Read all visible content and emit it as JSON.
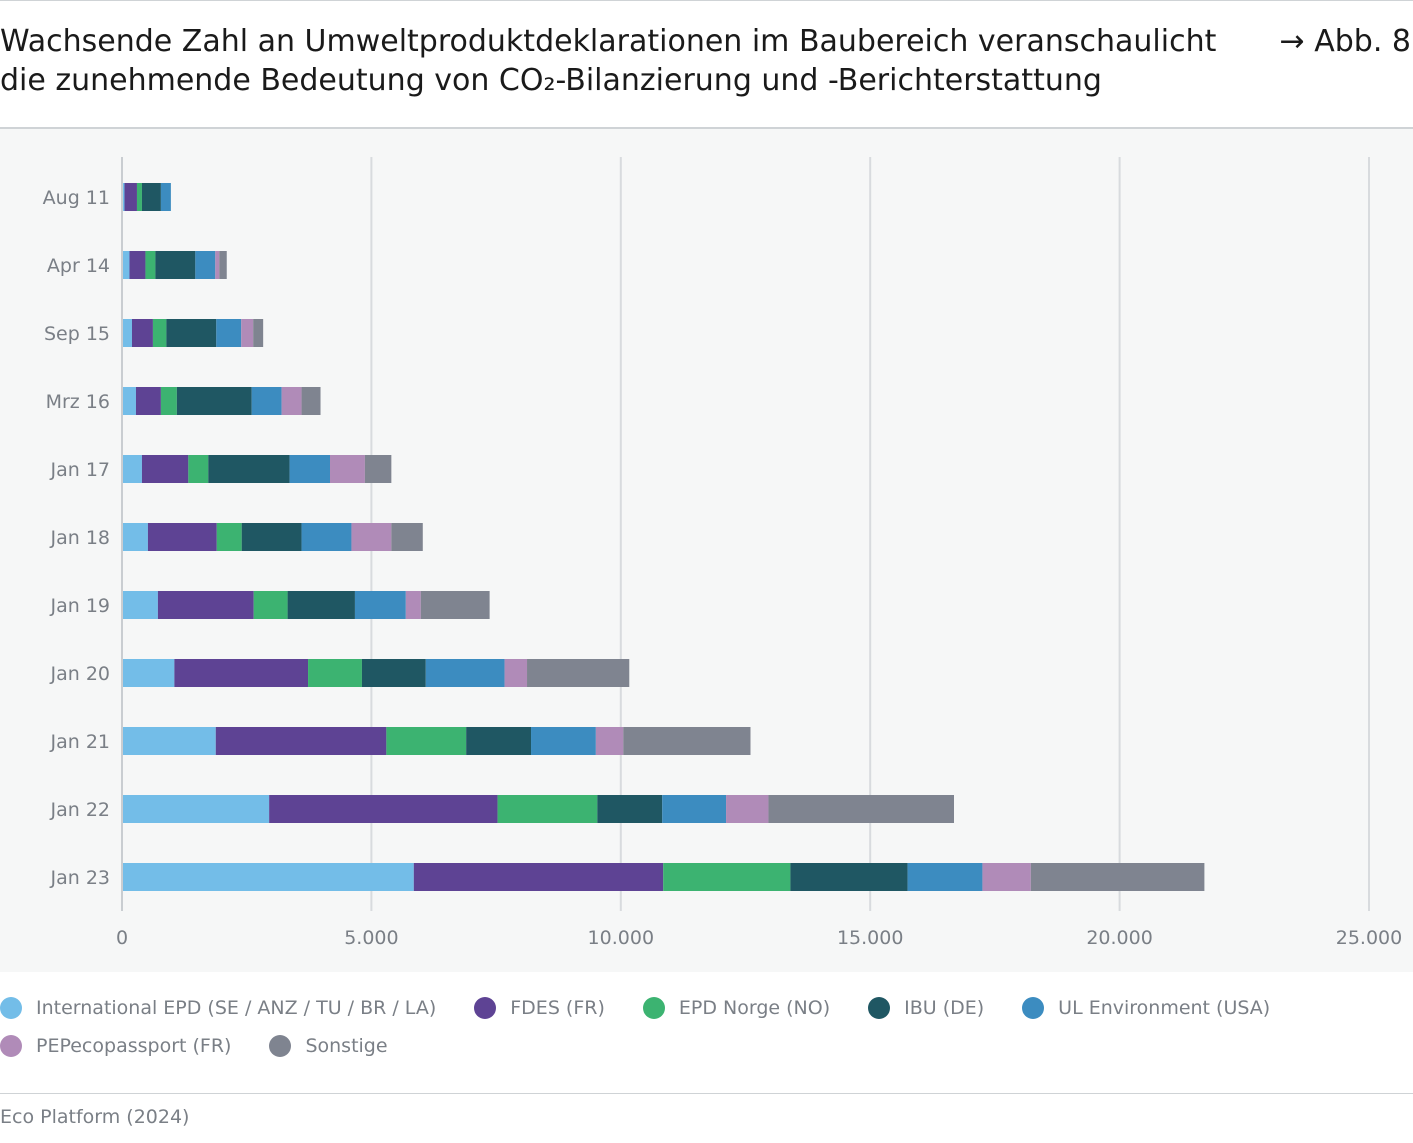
{
  "header": {
    "title_line1": "Wachsende Zahl an Umweltproduktdeklarationen im Baubereich veranschaulicht",
    "title_line2": "die zunehmende Bedeutung von CO₂-Bilanzierung und -Berichterstattung",
    "figure_ref": "→ Abb. 8"
  },
  "footer": {
    "source": "Eco Platform (2024)"
  },
  "chart_data": {
    "type": "bar",
    "orientation": "horizontal",
    "stacked": true,
    "categories": [
      "Aug 11",
      "Apr 14",
      "Sep 15",
      "Mrz 16",
      "Jan 17",
      "Jan 18",
      "Jan 19",
      "Jan 20",
      "Jan 21",
      "Jan 22",
      "Jan 23"
    ],
    "xlim": [
      0,
      25000
    ],
    "x_ticks": [
      0,
      5000,
      10000,
      15000,
      20000,
      25000
    ],
    "x_tick_labels": [
      "0",
      "5.000",
      "10.000",
      "15.000",
      "20.000",
      "25.000"
    ],
    "grid": "vertical",
    "legend_position": "bottom",
    "series": [
      {
        "name": "International EPD (SE / ANZ / TU / BR / LA)",
        "color": "#73bde8",
        "values": [
          50,
          150,
          200,
          280,
          400,
          520,
          720,
          1050,
          1880,
          2950,
          5850
        ]
      },
      {
        "name": "FDES (FR)",
        "color": "#5e4394",
        "values": [
          250,
          320,
          420,
          500,
          930,
          1380,
          1920,
          2680,
          3420,
          4580,
          5000
        ]
      },
      {
        "name": "EPD Norge (NO)",
        "color": "#3cb371",
        "values": [
          100,
          200,
          270,
          320,
          400,
          500,
          680,
          1080,
          1600,
          2000,
          2550
        ]
      },
      {
        "name": "IBU (DE)",
        "color": "#1f5763",
        "values": [
          380,
          800,
          1000,
          1500,
          1630,
          1200,
          1350,
          1280,
          1300,
          1300,
          2350
        ]
      },
      {
        "name": "UL Environment (USA)",
        "color": "#3c8cc0",
        "values": [
          200,
          400,
          500,
          600,
          810,
          1000,
          1020,
          1580,
          1300,
          1280,
          1500
        ]
      },
      {
        "name": "PEPecopassport (FR)",
        "color": "#b08bb8",
        "values": [
          0,
          80,
          240,
          400,
          700,
          800,
          300,
          450,
          550,
          850,
          970
        ]
      },
      {
        "name": "Sonstige",
        "color": "#7f8490",
        "values": [
          0,
          150,
          200,
          380,
          530,
          630,
          1380,
          2050,
          2550,
          3720,
          3480
        ]
      }
    ]
  }
}
